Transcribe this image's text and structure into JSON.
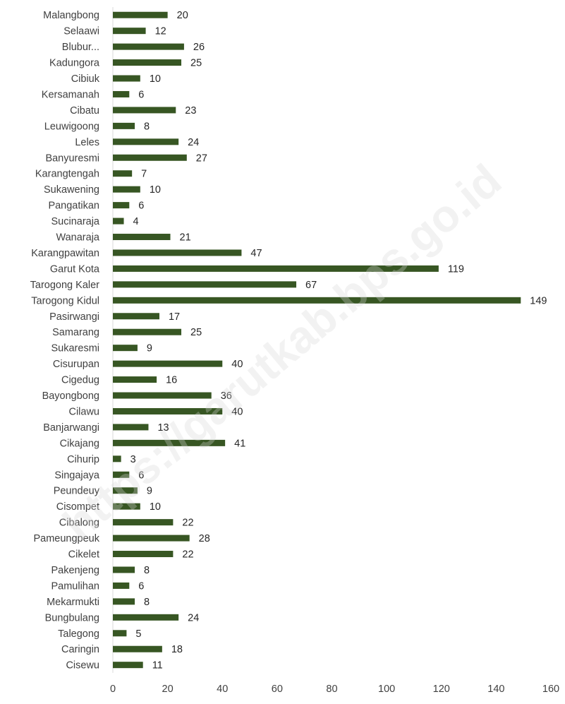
{
  "watermark": "https://garutkab.bps.go.id",
  "colors": {
    "bar": "#375623",
    "axis": "#d9d9d9",
    "text": "#404040"
  },
  "chart_data": {
    "type": "bar",
    "orientation": "horizontal",
    "categories": [
      "Malangbong",
      "Selaawi",
      "Blubur...",
      "Kadungora",
      "Cibiuk",
      "Kersamanah",
      "Cibatu",
      "Leuwigoong",
      "Leles",
      "Banyuresmi",
      "Karangtengah",
      "Sukawening",
      "Pangatikan",
      "Sucinaraja",
      "Wanaraja",
      "Karangpawitan",
      "Garut Kota",
      "Tarogong Kaler",
      "Tarogong Kidul",
      "Pasirwangi",
      "Samarang",
      "Sukaresmi",
      "Cisurupan",
      "Cigedug",
      "Bayongbong",
      "Cilawu",
      "Banjarwangi",
      "Cikajang",
      "Cihurip",
      "Singajaya",
      "Peundeuy",
      "Cisompet",
      "Cibalong",
      "Pameungpeuk",
      "Cikelet",
      "Pakenjeng",
      "Pamulihan",
      "Mekarmukti",
      "Bungbulang",
      "Talegong",
      "Caringin",
      "Cisewu"
    ],
    "values": [
      20,
      12,
      26,
      25,
      10,
      6,
      23,
      8,
      24,
      27,
      7,
      10,
      6,
      4,
      21,
      47,
      119,
      67,
      149,
      17,
      25,
      9,
      40,
      16,
      36,
      40,
      13,
      41,
      3,
      6,
      9,
      10,
      22,
      28,
      22,
      8,
      6,
      8,
      24,
      5,
      18,
      11
    ],
    "xlim": [
      0,
      160
    ],
    "xticks": [
      0,
      20,
      40,
      60,
      80,
      100,
      120,
      140,
      160
    ],
    "data_labels": true,
    "grid": false,
    "legend": "none"
  }
}
